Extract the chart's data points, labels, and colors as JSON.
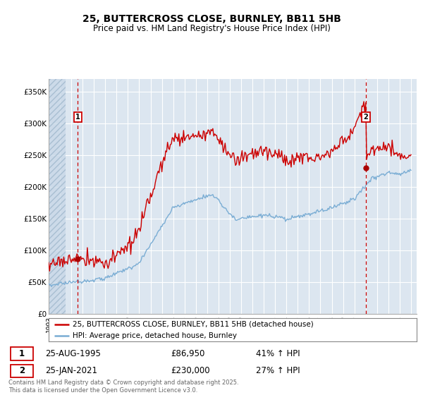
{
  "title": "25, BUTTERCROSS CLOSE, BURNLEY, BB11 5HB",
  "subtitle": "Price paid vs. HM Land Registry's House Price Index (HPI)",
  "ylabel_values": [
    "£0",
    "£50K",
    "£100K",
    "£150K",
    "£200K",
    "£250K",
    "£300K",
    "£350K"
  ],
  "ylim": [
    0,
    370000
  ],
  "yticks": [
    0,
    50000,
    100000,
    150000,
    200000,
    250000,
    300000,
    350000
  ],
  "sale1_year": 1995.583,
  "sale1_price": 86950,
  "sale1_label": "£86,950",
  "sale1_hpi": "41% ↑ HPI",
  "sale1_date": "25-AUG-1995",
  "sale2_year": 2021.0,
  "sale2_price": 230000,
  "sale2_label": "£230,000",
  "sale2_hpi": "27% ↑ HPI",
  "sale2_date": "25-JAN-2021",
  "legend_line1": "25, BUTTERCROSS CLOSE, BURNLEY, BB11 5HB (detached house)",
  "legend_line2": "HPI: Average price, detached house, Burnley",
  "footer": "Contains HM Land Registry data © Crown copyright and database right 2025.\nThis data is licensed under the Open Government Licence v3.0.",
  "line1_color": "#cc0000",
  "line2_color": "#7aadd4",
  "bg_color": "#dce6f0",
  "grid_color": "#ffffff",
  "sale_marker_color": "#aa0000",
  "vline_color": "#cc0000",
  "hatch_color": "#b8c8dc"
}
